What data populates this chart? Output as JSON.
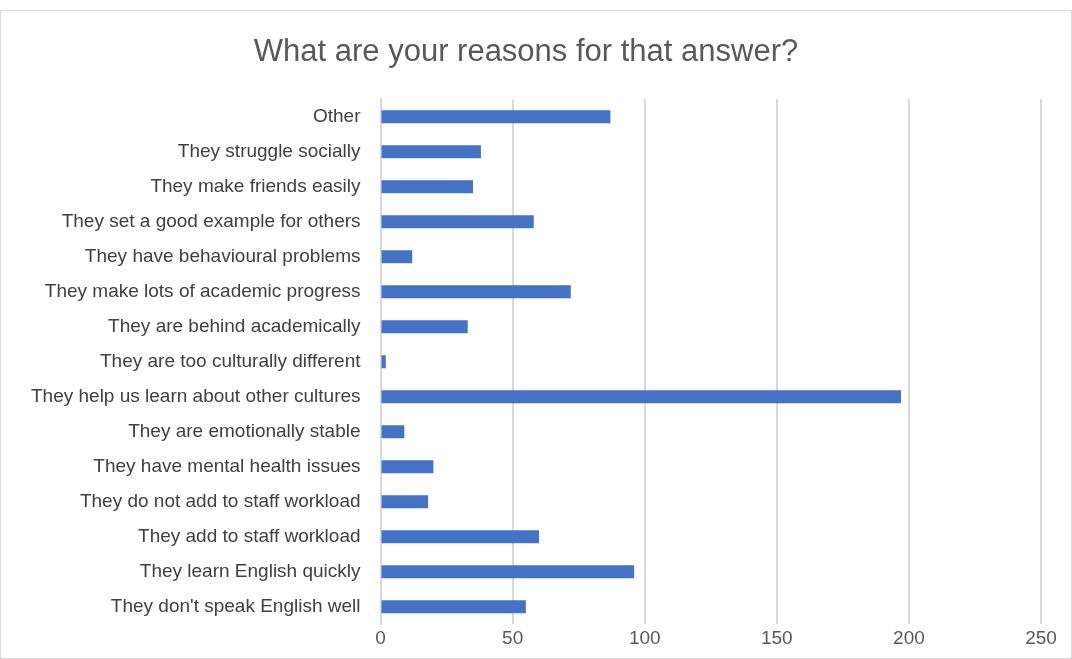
{
  "chart_data": {
    "type": "bar",
    "orientation": "horizontal",
    "title": "What are your reasons for that answer?",
    "categories": [
      "Other",
      "They struggle socially",
      "They make friends easily",
      "They set a good example for others",
      "They have behavioural problems",
      "They make lots of academic progress",
      "They are behind academically",
      "They are too culturally different",
      "They help us learn about other cultures",
      "They are emotionally stable",
      "They have mental health issues",
      "They do not add to staff workload",
      "They add to staff workload",
      "They learn English quickly",
      "They don't speak English well"
    ],
    "values": [
      87,
      38,
      35,
      58,
      12,
      72,
      33,
      2,
      197,
      9,
      20,
      18,
      60,
      96,
      55
    ],
    "color": "#4472c4",
    "xlim": [
      0,
      250
    ],
    "xticks": [
      0,
      50,
      100,
      150,
      200,
      250
    ],
    "grid": "x",
    "legend": false
  }
}
